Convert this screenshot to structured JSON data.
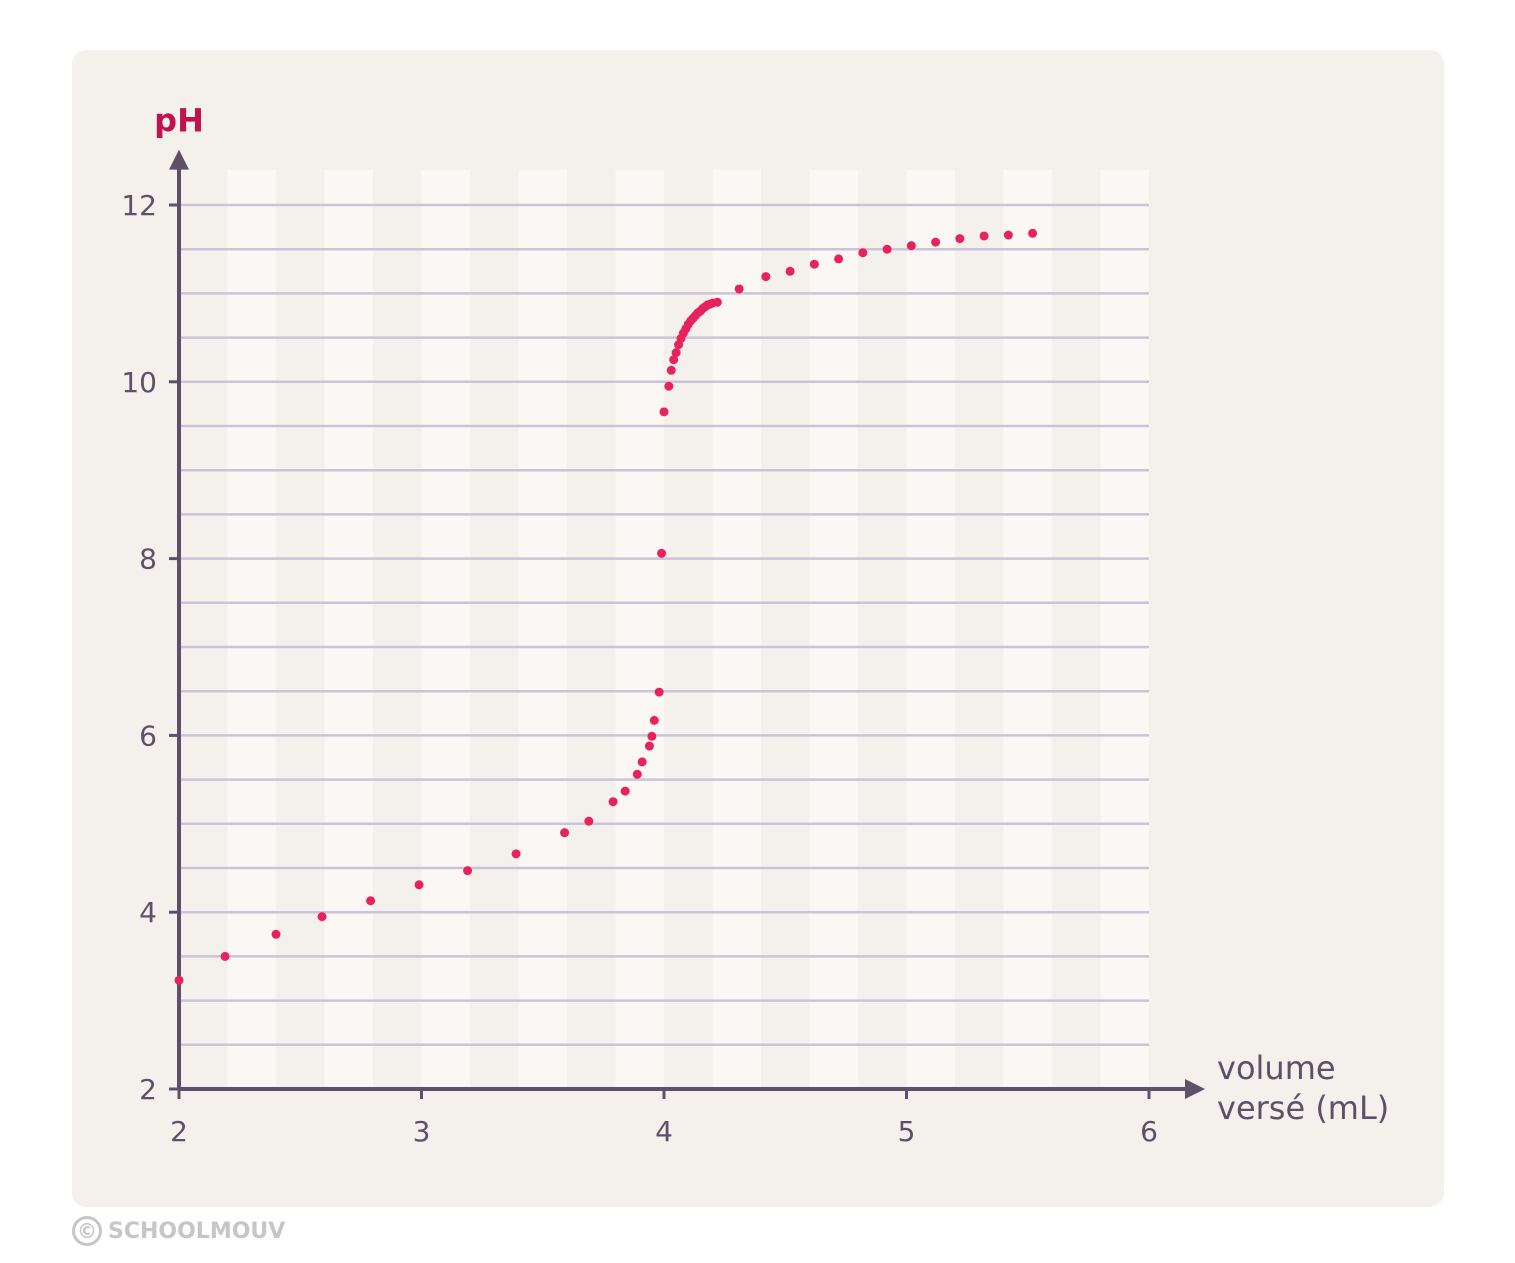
{
  "chart_data": {
    "type": "scatter",
    "xlabel": [
      "volume",
      "versé (mL)"
    ],
    "ylabel": "pH",
    "xlim": [
      2,
      6
    ],
    "ylim": [
      2,
      12
    ],
    "xticks": [
      "2",
      "3",
      "4",
      "5",
      "6"
    ],
    "yticks": [
      "2",
      "4",
      "6",
      "8",
      "10",
      "12"
    ],
    "grid": true,
    "x": [
      2.0,
      2.19,
      2.4,
      2.59,
      2.79,
      2.99,
      3.19,
      3.39,
      3.59,
      3.69,
      3.79,
      3.84,
      3.89,
      3.91,
      3.94,
      3.95,
      3.96,
      3.98,
      3.99,
      4.0,
      4.02,
      4.03,
      4.04,
      4.05,
      4.06,
      4.07,
      4.08,
      4.09,
      4.1,
      4.11,
      4.12,
      4.13,
      4.14,
      4.15,
      4.16,
      4.17,
      4.18,
      4.19,
      4.2,
      4.22,
      4.31,
      4.42,
      4.52,
      4.62,
      4.72,
      4.82,
      4.92,
      5.02,
      5.12,
      5.22,
      5.32,
      5.42,
      5.52
    ],
    "y": [
      3.23,
      3.5,
      3.75,
      3.95,
      4.13,
      4.31,
      4.47,
      4.66,
      4.9,
      5.03,
      5.25,
      5.37,
      5.56,
      5.7,
      5.88,
      5.99,
      6.17,
      6.49,
      8.06,
      9.66,
      9.95,
      10.13,
      10.25,
      10.33,
      10.42,
      10.49,
      10.55,
      10.6,
      10.65,
      10.69,
      10.72,
      10.75,
      10.78,
      10.8,
      10.83,
      10.85,
      10.87,
      10.88,
      10.89,
      10.9,
      11.05,
      11.19,
      11.25,
      11.33,
      11.39,
      11.46,
      11.5,
      11.54,
      11.58,
      11.62,
      11.65,
      11.66,
      11.68
    ],
    "colors": {
      "points": "#e8215f",
      "axis": "#5d5068",
      "ylabel": "#c0124f",
      "grid": "#cdc3d8"
    }
  },
  "watermark": {
    "symbol": "©",
    "text": "SCHOOLMOUV"
  }
}
